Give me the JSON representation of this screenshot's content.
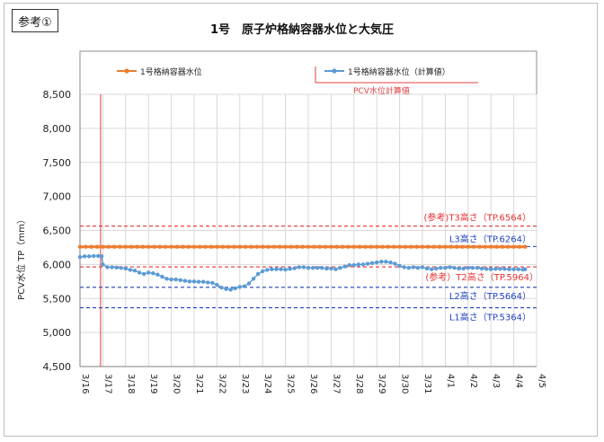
{
  "badge": "参考①",
  "chart_data": {
    "type": "line",
    "title": "1号　原子炉格納容器水位と大気圧",
    "ylabel": "PCV水位 TP（mm）",
    "xlabel": "",
    "ylim": [
      4500,
      8500
    ],
    "yticks": [
      4500,
      5000,
      5500,
      6000,
      6500,
      7000,
      7500,
      8000,
      8500
    ],
    "ytick_labels": [
      "4,500",
      "5,000",
      "5,500",
      "6,000",
      "6,500",
      "7,000",
      "7,500",
      "8,000",
      "8,500"
    ],
    "x_categories": [
      "3/16",
      "3/17",
      "3/18",
      "3/19",
      "3/20",
      "3/21",
      "3/22",
      "3/23",
      "3/24",
      "3/25",
      "3/26",
      "3/27",
      "3/28",
      "3/29",
      "3/30",
      "3/31",
      "4/1",
      "4/2",
      "4/3",
      "4/4",
      "4/5"
    ],
    "legend": {
      "entries": [
        {
          "name": "1号格納容器水位",
          "color": "#ed7d31"
        },
        {
          "name": "1号格納容器水位（計算値）",
          "color": "#5b9bd5"
        }
      ],
      "note": "PCV水位計算値"
    },
    "vertical_marker": {
      "x": 0.9,
      "color": "#e04040"
    },
    "reference_lines": [
      {
        "label": "(参考)T3高さ（TP.6564）",
        "value": 6564,
        "color": "#e83030"
      },
      {
        "label": "L3高さ（TP.6264）",
        "value": 6264,
        "color": "#2040c0"
      },
      {
        "label": "(参考）T2高さ（TP.5964）",
        "value": 5964,
        "color": "#e83030"
      },
      {
        "label": "L2高さ（TP.5664）",
        "value": 5664,
        "color": "#2040c0"
      },
      {
        "label": "L1高さ（TP.5364）",
        "value": 5364,
        "color": "#2040c0"
      }
    ],
    "series": [
      {
        "name": "1号格納容器水位",
        "color": "#ed7d31",
        "x": [
          0,
          19.5
        ],
        "y": [
          6260,
          6260
        ]
      },
      {
        "name": "1号格納容器水位（計算値）",
        "color": "#5b9bd5",
        "x": [
          0,
          0.2,
          0.4,
          0.6,
          0.8,
          0.95,
          1.0,
          1.2,
          1.4,
          1.6,
          1.8,
          2.0,
          2.2,
          2.4,
          2.6,
          2.8,
          3.0,
          3.2,
          3.4,
          3.6,
          3.8,
          4.0,
          4.2,
          4.4,
          4.6,
          4.8,
          5.0,
          5.2,
          5.4,
          5.6,
          5.8,
          6.0,
          6.2,
          6.4,
          6.6,
          6.8,
          7.0,
          7.2,
          7.4,
          7.6,
          7.8,
          8.0,
          8.2,
          8.4,
          8.6,
          8.8,
          9.0,
          9.2,
          9.4,
          9.6,
          9.8,
          10.0,
          10.2,
          10.4,
          10.6,
          10.8,
          11.0,
          11.2,
          11.4,
          11.6,
          11.8,
          12.0,
          12.2,
          12.4,
          12.6,
          12.8,
          13.0,
          13.2,
          13.4,
          13.6,
          13.8,
          14.0,
          14.2,
          14.4,
          14.6,
          14.8,
          15.0,
          15.2,
          15.4,
          15.6,
          15.8,
          16.0,
          16.2,
          16.4,
          16.6,
          16.8,
          17.0,
          17.2,
          17.4,
          17.6,
          17.8,
          18.0,
          18.2,
          18.4,
          18.6,
          18.8,
          19.0,
          19.2,
          19.4,
          19.5
        ],
        "y": [
          6110,
          6120,
          6120,
          6125,
          6125,
          6120,
          6000,
          5960,
          5960,
          5955,
          5950,
          5940,
          5920,
          5910,
          5880,
          5860,
          5880,
          5870,
          5850,
          5820,
          5790,
          5780,
          5780,
          5770,
          5760,
          5750,
          5750,
          5745,
          5745,
          5735,
          5730,
          5700,
          5660,
          5640,
          5630,
          5650,
          5670,
          5680,
          5720,
          5790,
          5860,
          5900,
          5920,
          5930,
          5930,
          5930,
          5925,
          5935,
          5945,
          5960,
          5960,
          5950,
          5950,
          5950,
          5950,
          5940,
          5940,
          5930,
          5950,
          5970,
          5990,
          5990,
          6000,
          6000,
          6010,
          6020,
          6030,
          6040,
          6040,
          6030,
          6010,
          5980,
          5960,
          5950,
          5960,
          5950,
          5960,
          5940,
          5930,
          5940,
          5950,
          5950,
          5960,
          5950,
          5940,
          5940,
          5950,
          5950,
          5950,
          5940,
          5935,
          5930,
          5935,
          5935,
          5935,
          5930,
          5930,
          5930,
          5925,
          5930
        ]
      }
    ]
  }
}
